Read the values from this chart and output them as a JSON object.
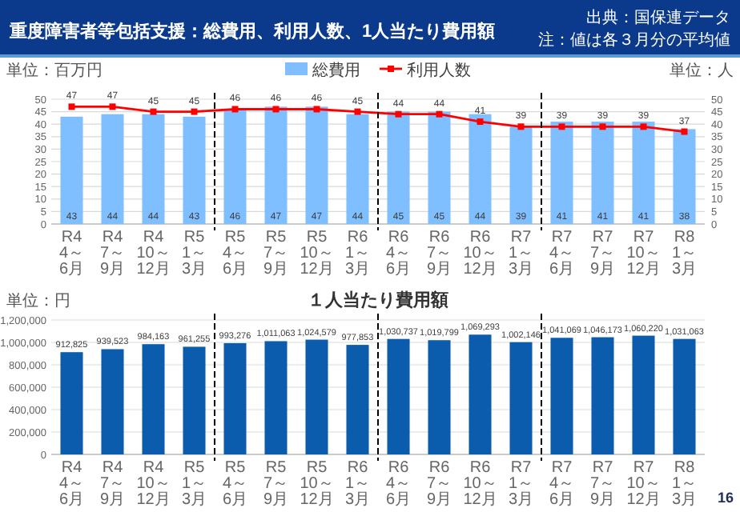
{
  "chart_data": [
    {
      "type": "bar",
      "title": "重度障害者等包括支援：総費用、利用人数、1人当たり費用額",
      "annotations": [
        "出典：国保連データ",
        "注：値は各３月分の平均値"
      ],
      "ylabel": "単位：百万円",
      "y2label": "単位：人",
      "categories": [
        "R4 4～6月",
        "R4 7～9月",
        "R4 10～12月",
        "R5 1～3月",
        "R5 4～6月",
        "R5 7～9月",
        "R5 10～12月",
        "R6 1～3月",
        "R6 4～6月",
        "R6 7～9月",
        "R6 10～12月",
        "R7 1～3月",
        "R7 4～6月",
        "R7 7～9月",
        "R7 10～12月",
        "R8 1～3月"
      ],
      "series": [
        {
          "name": "総費用",
          "color": "#7fbfff",
          "values": [
            43,
            44,
            44,
            43,
            46,
            47,
            47,
            44,
            45,
            45,
            44,
            39,
            41,
            41,
            41,
            38
          ]
        },
        {
          "name": "利用人数",
          "type": "line",
          "axis": "y2",
          "color": "#ff0000",
          "values": [
            47,
            47,
            45,
            45,
            46,
            46,
            46,
            45,
            44,
            44,
            41,
            39,
            39,
            39,
            39,
            37
          ]
        }
      ],
      "marker": "square",
      "line_style": "solid",
      "data_labels": true,
      "grid": "y",
      "legend": "top",
      "ylim": [
        0,
        50
      ],
      "yticks": [
        0,
        5,
        10,
        15,
        20,
        25,
        30,
        35,
        40,
        45,
        50
      ],
      "y2lim": [
        0,
        50
      ],
      "y2ticks": [
        0,
        5,
        10,
        15,
        20,
        25,
        30,
        35,
        40,
        45,
        50
      ]
    },
    {
      "type": "bar",
      "title": "１人当たり費用額",
      "ylabel": "単位：円",
      "annotations": [
        "16"
      ],
      "categories": [
        "R4 4～6月",
        "R4 7～9月",
        "R4 10～12月",
        "R5 1～3月",
        "R5 4～6月",
        "R5 7～9月",
        "R5 10～12月",
        "R6 1～3月",
        "R6 4～6月",
        "R6 7～9月",
        "R6 10～12月",
        "R7 1～3月",
        "R7 4～6月",
        "R7 7～9月",
        "R7 10～12月",
        "R8 1～3月"
      ],
      "color": "#0b5cad",
      "values": [
        912825,
        939523,
        984163,
        961255,
        993276,
        1011063,
        1024579,
        977853,
        1030737,
        1019799,
        1069293,
        1002146,
        1041069,
        1046173,
        1060220,
        1031063
      ],
      "value_labels": [
        "912,825",
        "939,523",
        "984,163",
        "961,255",
        "993,276",
        "1,011,063",
        "1,024,579",
        "977,853",
        "1,030,737",
        "1,019,799",
        "1,069,293",
        "1,002,146",
        "1,041,069",
        "1,046,173",
        "1,060,220",
        "1,031,063"
      ],
      "grid": "y",
      "ylim": [
        0,
        1200000
      ],
      "yticks": [
        {
          "value": 0,
          "label": "0"
        },
        {
          "value": 200000,
          "label": "200,000"
        },
        {
          "value": 400000,
          "label": "400,000"
        },
        {
          "value": 600000,
          "label": "600,000"
        },
        {
          "value": 800000,
          "label": "800,000"
        },
        {
          "value": 1000000,
          "label": "1,000,000"
        },
        {
          "value": 1200000,
          "label": "1,200,000"
        }
      ]
    }
  ]
}
